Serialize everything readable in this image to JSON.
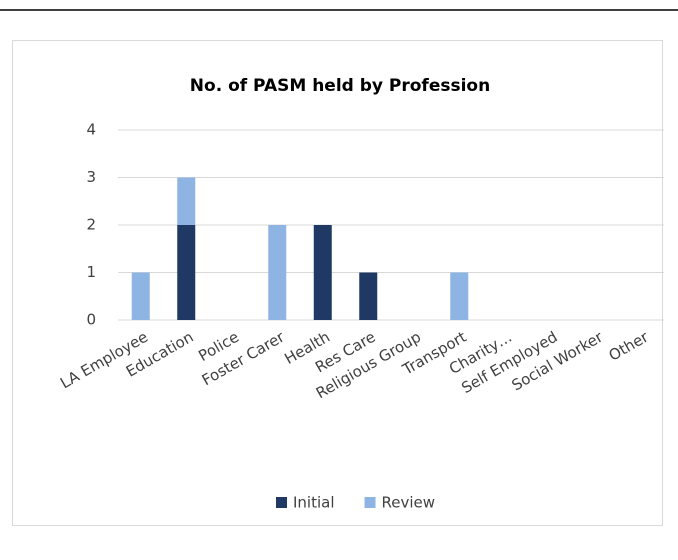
{
  "chart_data": {
    "type": "bar",
    "stacked": true,
    "title": "No. of PASM held by Profession",
    "categories": [
      "LA Employee",
      "Education",
      "Police",
      "Foster Carer",
      "Health",
      "Res Care",
      "Religious Group",
      "Transport",
      "Charity…",
      "Self Employed",
      "Social Worker",
      "Other"
    ],
    "series": [
      {
        "name": "Initial",
        "color": "#1f3864",
        "values": [
          0,
          2,
          0,
          0,
          2,
          1,
          0,
          0,
          0,
          0,
          0,
          0
        ]
      },
      {
        "name": "Review",
        "color": "#8eb4e3",
        "values": [
          1,
          1,
          0,
          2,
          0,
          0,
          0,
          1,
          0,
          0,
          0,
          0
        ]
      }
    ],
    "ylim": [
      0,
      4
    ],
    "yticks": [
      0,
      1,
      2,
      3,
      4
    ],
    "grid": true,
    "legend": "bottom"
  }
}
